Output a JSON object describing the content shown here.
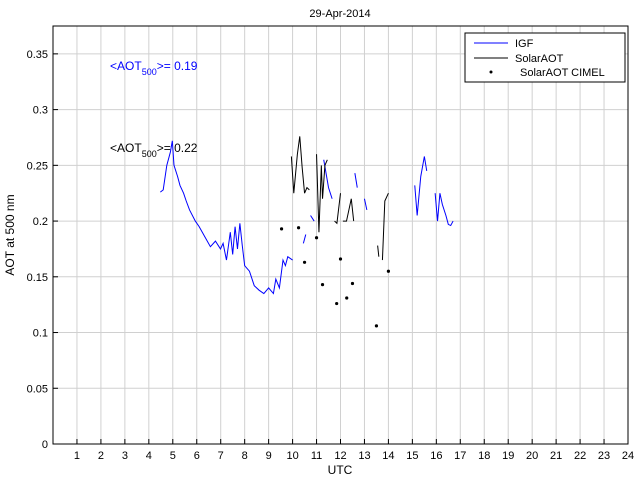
{
  "chart_data": {
    "type": "line",
    "title": "29-Apr-2014",
    "xlabel": "UTC",
    "ylabel": "AOT at 500 nm",
    "xlim": [
      0,
      24
    ],
    "ylim": [
      0,
      0.375
    ],
    "xticks": [
      "1",
      "2",
      "3",
      "4",
      "5",
      "6",
      "7",
      "8",
      "9",
      "10",
      "11",
      "12",
      "13",
      "14",
      "15",
      "16",
      "17",
      "18",
      "19",
      "20",
      "21",
      "22",
      "23",
      "24"
    ],
    "yticks": [
      "0",
      "0.05",
      "0.1",
      "0.15",
      "0.2",
      "0.25",
      "0.3",
      "0.35"
    ],
    "grid": true,
    "legend": {
      "position": "top-right",
      "entries": [
        "IGF",
        "SolarAOT",
        "SolarAOT CIMEL"
      ]
    },
    "annotations": [
      {
        "prefix": "<AOT",
        "sub": "500",
        "suffix": ">= 0.19",
        "color": "#0000ff"
      },
      {
        "prefix": "<AOT",
        "sub": "500",
        "suffix": ">= 0.22",
        "color": "#000000"
      }
    ],
    "series": [
      {
        "name": "IGF",
        "color": "#0000ff",
        "segments": [
          [
            [
              4.48,
              0.226
            ],
            [
              4.6,
              0.228
            ],
            [
              4.75,
              0.25
            ],
            [
              4.9,
              0.262
            ],
            [
              4.98,
              0.272
            ],
            [
              5.05,
              0.25
            ],
            [
              5.2,
              0.24
            ],
            [
              5.3,
              0.232
            ],
            [
              5.45,
              0.225
            ],
            [
              5.56,
              0.218
            ],
            [
              5.7,
              0.21
            ],
            [
              5.94,
              0.2
            ],
            [
              6.1,
              0.195
            ],
            [
              6.36,
              0.185
            ],
            [
              6.57,
              0.177
            ],
            [
              6.78,
              0.182
            ],
            [
              6.99,
              0.175
            ],
            [
              7.1,
              0.18
            ],
            [
              7.24,
              0.165
            ],
            [
              7.4,
              0.19
            ],
            [
              7.5,
              0.17
            ],
            [
              7.6,
              0.195
            ],
            [
              7.7,
              0.175
            ],
            [
              7.8,
              0.198
            ],
            [
              7.9,
              0.178
            ],
            [
              8.0,
              0.16
            ],
            [
              8.2,
              0.155
            ],
            [
              8.4,
              0.142
            ],
            [
              8.6,
              0.138
            ],
            [
              8.8,
              0.135
            ],
            [
              9.0,
              0.14
            ],
            [
              9.2,
              0.135
            ],
            [
              9.3,
              0.148
            ],
            [
              9.45,
              0.14
            ],
            [
              9.6,
              0.165
            ],
            [
              9.7,
              0.16
            ],
            [
              9.8,
              0.168
            ],
            [
              10.0,
              0.165
            ]
          ],
          [
            [
              10.45,
              0.18
            ],
            [
              10.55,
              0.188
            ]
          ],
          [
            [
              10.75,
              0.205
            ],
            [
              10.9,
              0.2
            ]
          ],
          [
            [
              11.3,
              0.255
            ],
            [
              11.5,
              0.23
            ],
            [
              11.65,
              0.22
            ]
          ],
          [
            [
              12.6,
              0.243
            ],
            [
              12.7,
              0.23
            ]
          ],
          [
            [
              13.0,
              0.22
            ],
            [
              13.1,
              0.21
            ]
          ],
          [
            [
              15.1,
              0.232
            ],
            [
              15.2,
              0.205
            ],
            [
              15.35,
              0.24
            ],
            [
              15.5,
              0.258
            ],
            [
              15.6,
              0.245
            ]
          ],
          [
            [
              15.95,
              0.225
            ],
            [
              16.05,
              0.2
            ],
            [
              16.15,
              0.225
            ],
            [
              16.25,
              0.215
            ],
            [
              16.4,
              0.205
            ],
            [
              16.5,
              0.197
            ],
            [
              16.6,
              0.196
            ],
            [
              16.7,
              0.2
            ]
          ]
        ]
      },
      {
        "name": "SolarAOT",
        "color": "#000000",
        "segments": [
          [
            [
              9.95,
              0.258
            ],
            [
              10.05,
              0.225
            ],
            [
              10.2,
              0.26
            ],
            [
              10.3,
              0.276
            ],
            [
              10.4,
              0.248
            ],
            [
              10.5,
              0.225
            ],
            [
              10.6,
              0.23
            ],
            [
              10.7,
              0.228
            ]
          ],
          [
            [
              11.0,
              0.26
            ],
            [
              11.1,
              0.19
            ],
            [
              11.2,
              0.25
            ],
            [
              11.25,
              0.22
            ],
            [
              11.35,
              0.25
            ],
            [
              11.45,
              0.255
            ]
          ],
          [
            [
              11.75,
              0.2
            ],
            [
              11.85,
              0.198
            ],
            [
              12.0,
              0.225
            ]
          ],
          [
            [
              12.1,
              0.2
            ],
            [
              12.25,
              0.2
            ],
            [
              12.35,
              0.21
            ],
            [
              12.45,
              0.22
            ],
            [
              12.55,
              0.2
            ]
          ],
          [
            [
              13.55,
              0.178
            ],
            [
              13.6,
              0.168
            ]
          ],
          [
            [
              13.75,
              0.165
            ],
            [
              13.85,
              0.218
            ],
            [
              14.0,
              0.225
            ]
          ]
        ]
      }
    ],
    "points": {
      "name": "SolarAOT CIMEL",
      "color": "#000000",
      "x": [
        9.54,
        10.25,
        10.5,
        11.0,
        11.25,
        11.84,
        12.0,
        12.26,
        12.5,
        13.5,
        14.0
      ],
      "y": [
        0.193,
        0.194,
        0.163,
        0.185,
        0.143,
        0.126,
        0.166,
        0.131,
        0.144,
        0.106,
        0.155
      ]
    }
  }
}
